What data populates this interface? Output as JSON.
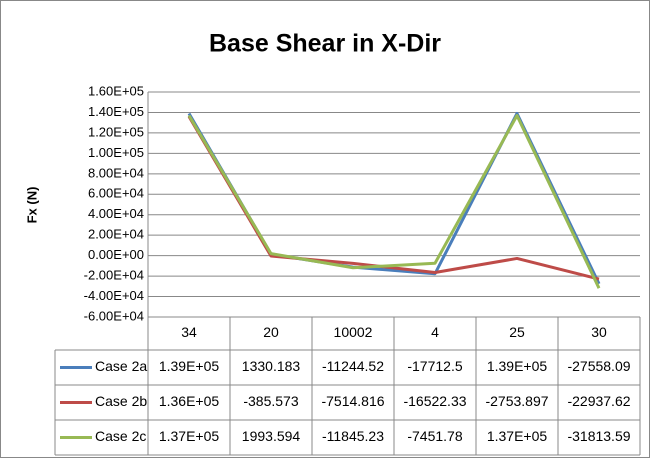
{
  "chart_data": {
    "type": "line",
    "title": "Base Shear in X-Dir",
    "y_label": "Fx (N)",
    "categories": [
      "34",
      "20",
      "10002",
      "4",
      "25",
      "30"
    ],
    "series": [
      {
        "name": "Case 2a",
        "color": "#4a7ebb",
        "values": [
          139000,
          1330.183,
          -11244.52,
          -17712.5,
          139000,
          -27558.09
        ],
        "value_labels": [
          "1.39E+05",
          "1330.183",
          "-11244.52",
          "-17712.5",
          "1.39E+05",
          "-27558.09"
        ]
      },
      {
        "name": "Case 2b",
        "color": "#be4b48",
        "values": [
          136000,
          -385.573,
          -7514.816,
          -16522.33,
          -2753.897,
          -22937.62
        ],
        "value_labels": [
          "1.36E+05",
          "-385.573",
          "-7514.816",
          "-16522.33",
          "-2753.897",
          "-22937.62"
        ]
      },
      {
        "name": "Case 2c",
        "color": "#98b954",
        "values": [
          137000,
          1993.594,
          -11845.23,
          -7451.78,
          137000,
          -31813.59
        ],
        "value_labels": [
          "1.37E+05",
          "1993.594",
          "-11845.23",
          "-7451.78",
          "1.37E+05",
          "-31813.59"
        ]
      }
    ],
    "ylim": [
      -60000,
      160000
    ],
    "yticks": [
      {
        "value": -60000,
        "label": "-6.00E+04"
      },
      {
        "value": -40000,
        "label": "-4.00E+04"
      },
      {
        "value": -20000,
        "label": "-2.00E+04"
      },
      {
        "value": 0,
        "label": "0.00E+00"
      },
      {
        "value": 20000,
        "label": "2.00E+04"
      },
      {
        "value": 40000,
        "label": "4.00E+04"
      },
      {
        "value": 60000,
        "label": "6.00E+04"
      },
      {
        "value": 80000,
        "label": "8.00E+04"
      },
      {
        "value": 100000,
        "label": "1.00E+05"
      },
      {
        "value": 120000,
        "label": "1.20E+05"
      },
      {
        "value": 140000,
        "label": "1.40E+05"
      },
      {
        "value": 160000,
        "label": "1.60E+05"
      }
    ],
    "grid": true
  }
}
